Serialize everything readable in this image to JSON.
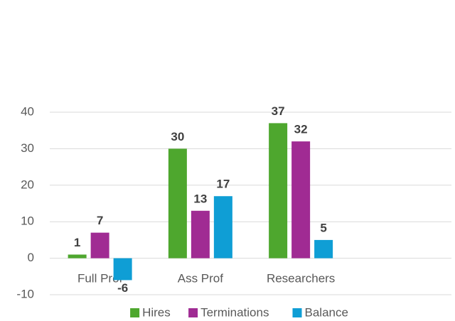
{
  "chart_data": {
    "type": "bar",
    "categories": [
      "Full Prof",
      "Ass Prof",
      "Researchers",
      null
    ],
    "series": [
      {
        "name": "Hires",
        "color": "#4ea72e",
        "values": [
          1,
          30,
          37,
          null
        ]
      },
      {
        "name": "Terminations",
        "color": "#a02b93",
        "values": [
          7,
          13,
          32,
          null
        ]
      },
      {
        "name": "Balance",
        "color": "#0f9ed5",
        "values": [
          -6,
          17,
          5,
          null
        ]
      }
    ],
    "ylim": [
      -10,
      40
    ],
    "yticks": [
      -10,
      0,
      10,
      20,
      30,
      40
    ],
    "grid": true,
    "legend": "bottom"
  }
}
